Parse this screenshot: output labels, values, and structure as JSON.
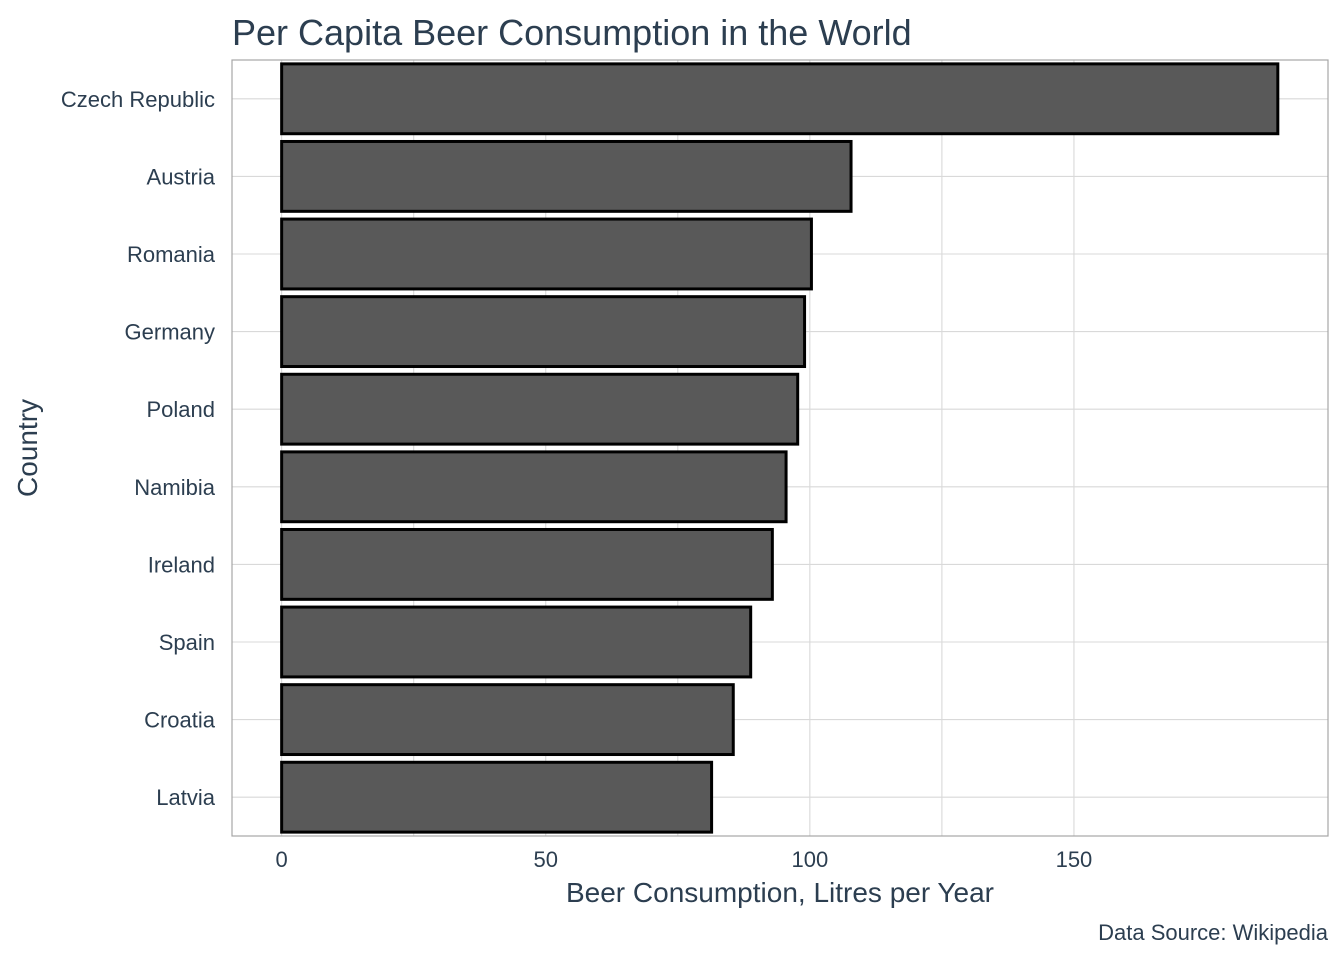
{
  "chart_data": {
    "type": "bar",
    "orientation": "horizontal",
    "title": "Per Capita Beer Consumption in the World",
    "xlabel": "Beer Consumption, Litres per Year",
    "ylabel": "Country",
    "caption": "Data Source: Wikipedia",
    "categories": [
      "Czech Republic",
      "Austria",
      "Romania",
      "Germany",
      "Poland",
      "Namibia",
      "Ireland",
      "Spain",
      "Croatia",
      "Latvia"
    ],
    "values": [
      188.6,
      107.8,
      100.3,
      99.0,
      97.7,
      95.5,
      92.9,
      88.8,
      85.5,
      81.4
    ],
    "xlim": [
      -9.4,
      198.1
    ],
    "xticks": [
      0,
      50,
      100,
      150
    ],
    "xtick_labels": [
      "0",
      "50",
      "100",
      "150"
    ],
    "grid": true,
    "legend": "none",
    "bar_fill": "#595959",
    "bar_outline": "#000000",
    "text_color": "#2c3e50"
  }
}
